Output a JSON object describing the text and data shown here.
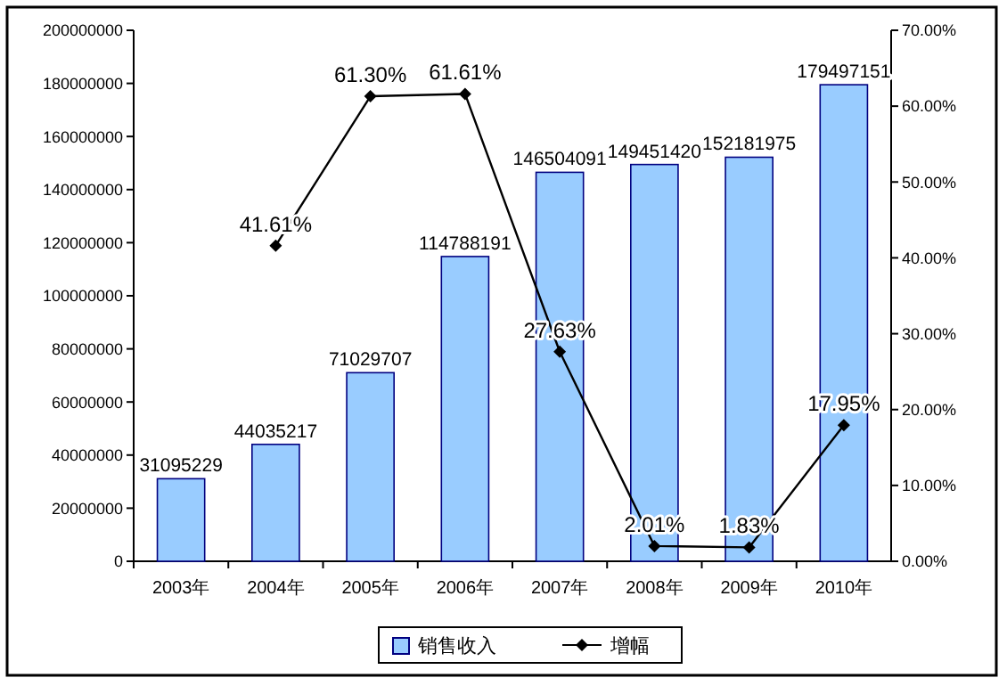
{
  "chart_data": {
    "type": "bar",
    "categories": [
      "2003年",
      "2004年",
      "2005年",
      "2006年",
      "2007年",
      "2008年",
      "2009年",
      "2010年"
    ],
    "series": [
      {
        "name": "销售收入",
        "color": "#99ccff",
        "values": [
          31095229,
          44035217,
          71029707,
          114788191,
          146504091,
          149451420,
          152181975,
          179497151
        ],
        "value_labels": [
          "31095229",
          "44035217",
          "71029707",
          "114788191",
          "146504091",
          "149451420",
          "152181975",
          "179497151"
        ]
      },
      {
        "name": "增幅",
        "type": "line",
        "axis": "y2",
        "color": "#000000",
        "marker": "diamond",
        "values": [
          null,
          41.61,
          61.3,
          61.61,
          27.63,
          2.01,
          1.83,
          17.95
        ],
        "value_labels": [
          null,
          "41.61%",
          "61.30%",
          "61.61%",
          "27.63%",
          "2.01%",
          "1.83%",
          "17.95%"
        ]
      }
    ],
    "ylim": [
      0,
      200000000
    ],
    "yticks": [
      0,
      20000000,
      40000000,
      60000000,
      80000000,
      100000000,
      120000000,
      140000000,
      160000000,
      180000000,
      200000000
    ],
    "y2lim": [
      0,
      70
    ],
    "y2ticks": [
      {
        "value": 0,
        "label": "0.00%"
      },
      {
        "value": 10,
        "label": "10.00%"
      },
      {
        "value": 20,
        "label": "20.00%"
      },
      {
        "value": 30,
        "label": "30.00%"
      },
      {
        "value": 40,
        "label": "40.00%"
      },
      {
        "value": 50,
        "label": "50.00%"
      },
      {
        "value": 60,
        "label": "60.00%"
      },
      {
        "value": 70,
        "label": "70.00%"
      }
    ],
    "legend": "bottom",
    "grid": false
  }
}
